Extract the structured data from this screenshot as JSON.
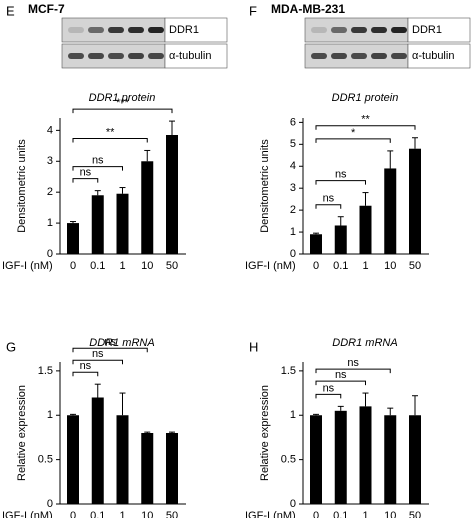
{
  "chart_data": [
    {
      "type": "bar",
      "panel": "E",
      "cell_line": "MCF-7",
      "blot_labels": [
        "DDR1",
        "α-tubulin"
      ],
      "title": "DDR1 protein",
      "xlabel": "IGF-I (nM)",
      "ylabel": "Densitometric units",
      "categories": [
        "0",
        "0.1",
        "1",
        "10",
        "50"
      ],
      "values": [
        1.0,
        1.9,
        1.95,
        3.0,
        3.85
      ],
      "errors": [
        0.05,
        0.15,
        0.2,
        0.35,
        0.45
      ],
      "color": "#000000",
      "ylim": [
        0,
        4.4
      ],
      "yticks": [
        0,
        1,
        2,
        3,
        4
      ],
      "significance": [
        {
          "label": "ns",
          "from": "0",
          "to": "0.1"
        },
        {
          "label": "ns",
          "from": "0",
          "to": "1"
        },
        {
          "label": "**",
          "from": "0",
          "to": "10"
        },
        {
          "label": "***",
          "from": "0",
          "to": "50"
        }
      ]
    },
    {
      "type": "bar",
      "panel": "F",
      "cell_line": "MDA-MB-231",
      "blot_labels": [
        "DDR1",
        "α-tubulin"
      ],
      "title": "DDR1 protein",
      "xlabel": "IGF-I (nM)",
      "ylabel": "Densitometric units",
      "categories": [
        "0",
        "0.1",
        "1",
        "10",
        "50"
      ],
      "values": [
        0.9,
        1.3,
        2.2,
        3.9,
        4.8
      ],
      "errors": [
        0.05,
        0.4,
        0.6,
        0.8,
        0.5
      ],
      "color": "#000000",
      "ylim": [
        0,
        6.2
      ],
      "yticks": [
        0,
        1,
        2,
        3,
        4,
        5,
        6
      ],
      "significance": [
        {
          "label": "ns",
          "from": "0",
          "to": "0.1"
        },
        {
          "label": "ns",
          "from": "0",
          "to": "1"
        },
        {
          "label": "*",
          "from": "0",
          "to": "10"
        },
        {
          "label": "**",
          "from": "0",
          "to": "50"
        }
      ]
    },
    {
      "type": "bar",
      "panel": "G",
      "title": "DDR1 mRNA",
      "xlabel": "IGF-I (nM)",
      "ylabel": "Relative expression",
      "categories": [
        "0",
        "0,1",
        "1",
        "10",
        "50"
      ],
      "values": [
        1.0,
        1.2,
        1.0,
        0.8,
        0.8
      ],
      "errors": [
        0.01,
        0.15,
        0.25,
        0.01,
        0.01
      ],
      "color": "#000000",
      "ylim": [
        0,
        1.6
      ],
      "yticks": [
        0,
        0.5,
        1,
        1.5
      ],
      "significance": [
        {
          "label": "ns",
          "from": "0",
          "to": "0,1"
        },
        {
          "label": "ns",
          "from": "0",
          "to": "1"
        },
        {
          "label": "ns",
          "from": "0",
          "to": "10"
        }
      ]
    },
    {
      "type": "bar",
      "panel": "H",
      "title": "DDR1 mRNA",
      "xlabel": "IGF-I (nM)",
      "ylabel": "Relative expression",
      "categories": [
        "0",
        "0.1",
        "1",
        "10",
        "50"
      ],
      "values": [
        1.0,
        1.05,
        1.1,
        1.0,
        1.0
      ],
      "errors": [
        0.01,
        0.05,
        0.15,
        0.08,
        0.22
      ],
      "color": "#000000",
      "ylim": [
        0,
        1.6
      ],
      "yticks": [
        0,
        0.5,
        1,
        1.5
      ],
      "significance": [
        {
          "label": "ns",
          "from": "0",
          "to": "0.1"
        },
        {
          "label": "ns",
          "from": "0",
          "to": "1"
        },
        {
          "label": "ns",
          "from": "0",
          "to": "10"
        }
      ]
    }
  ]
}
